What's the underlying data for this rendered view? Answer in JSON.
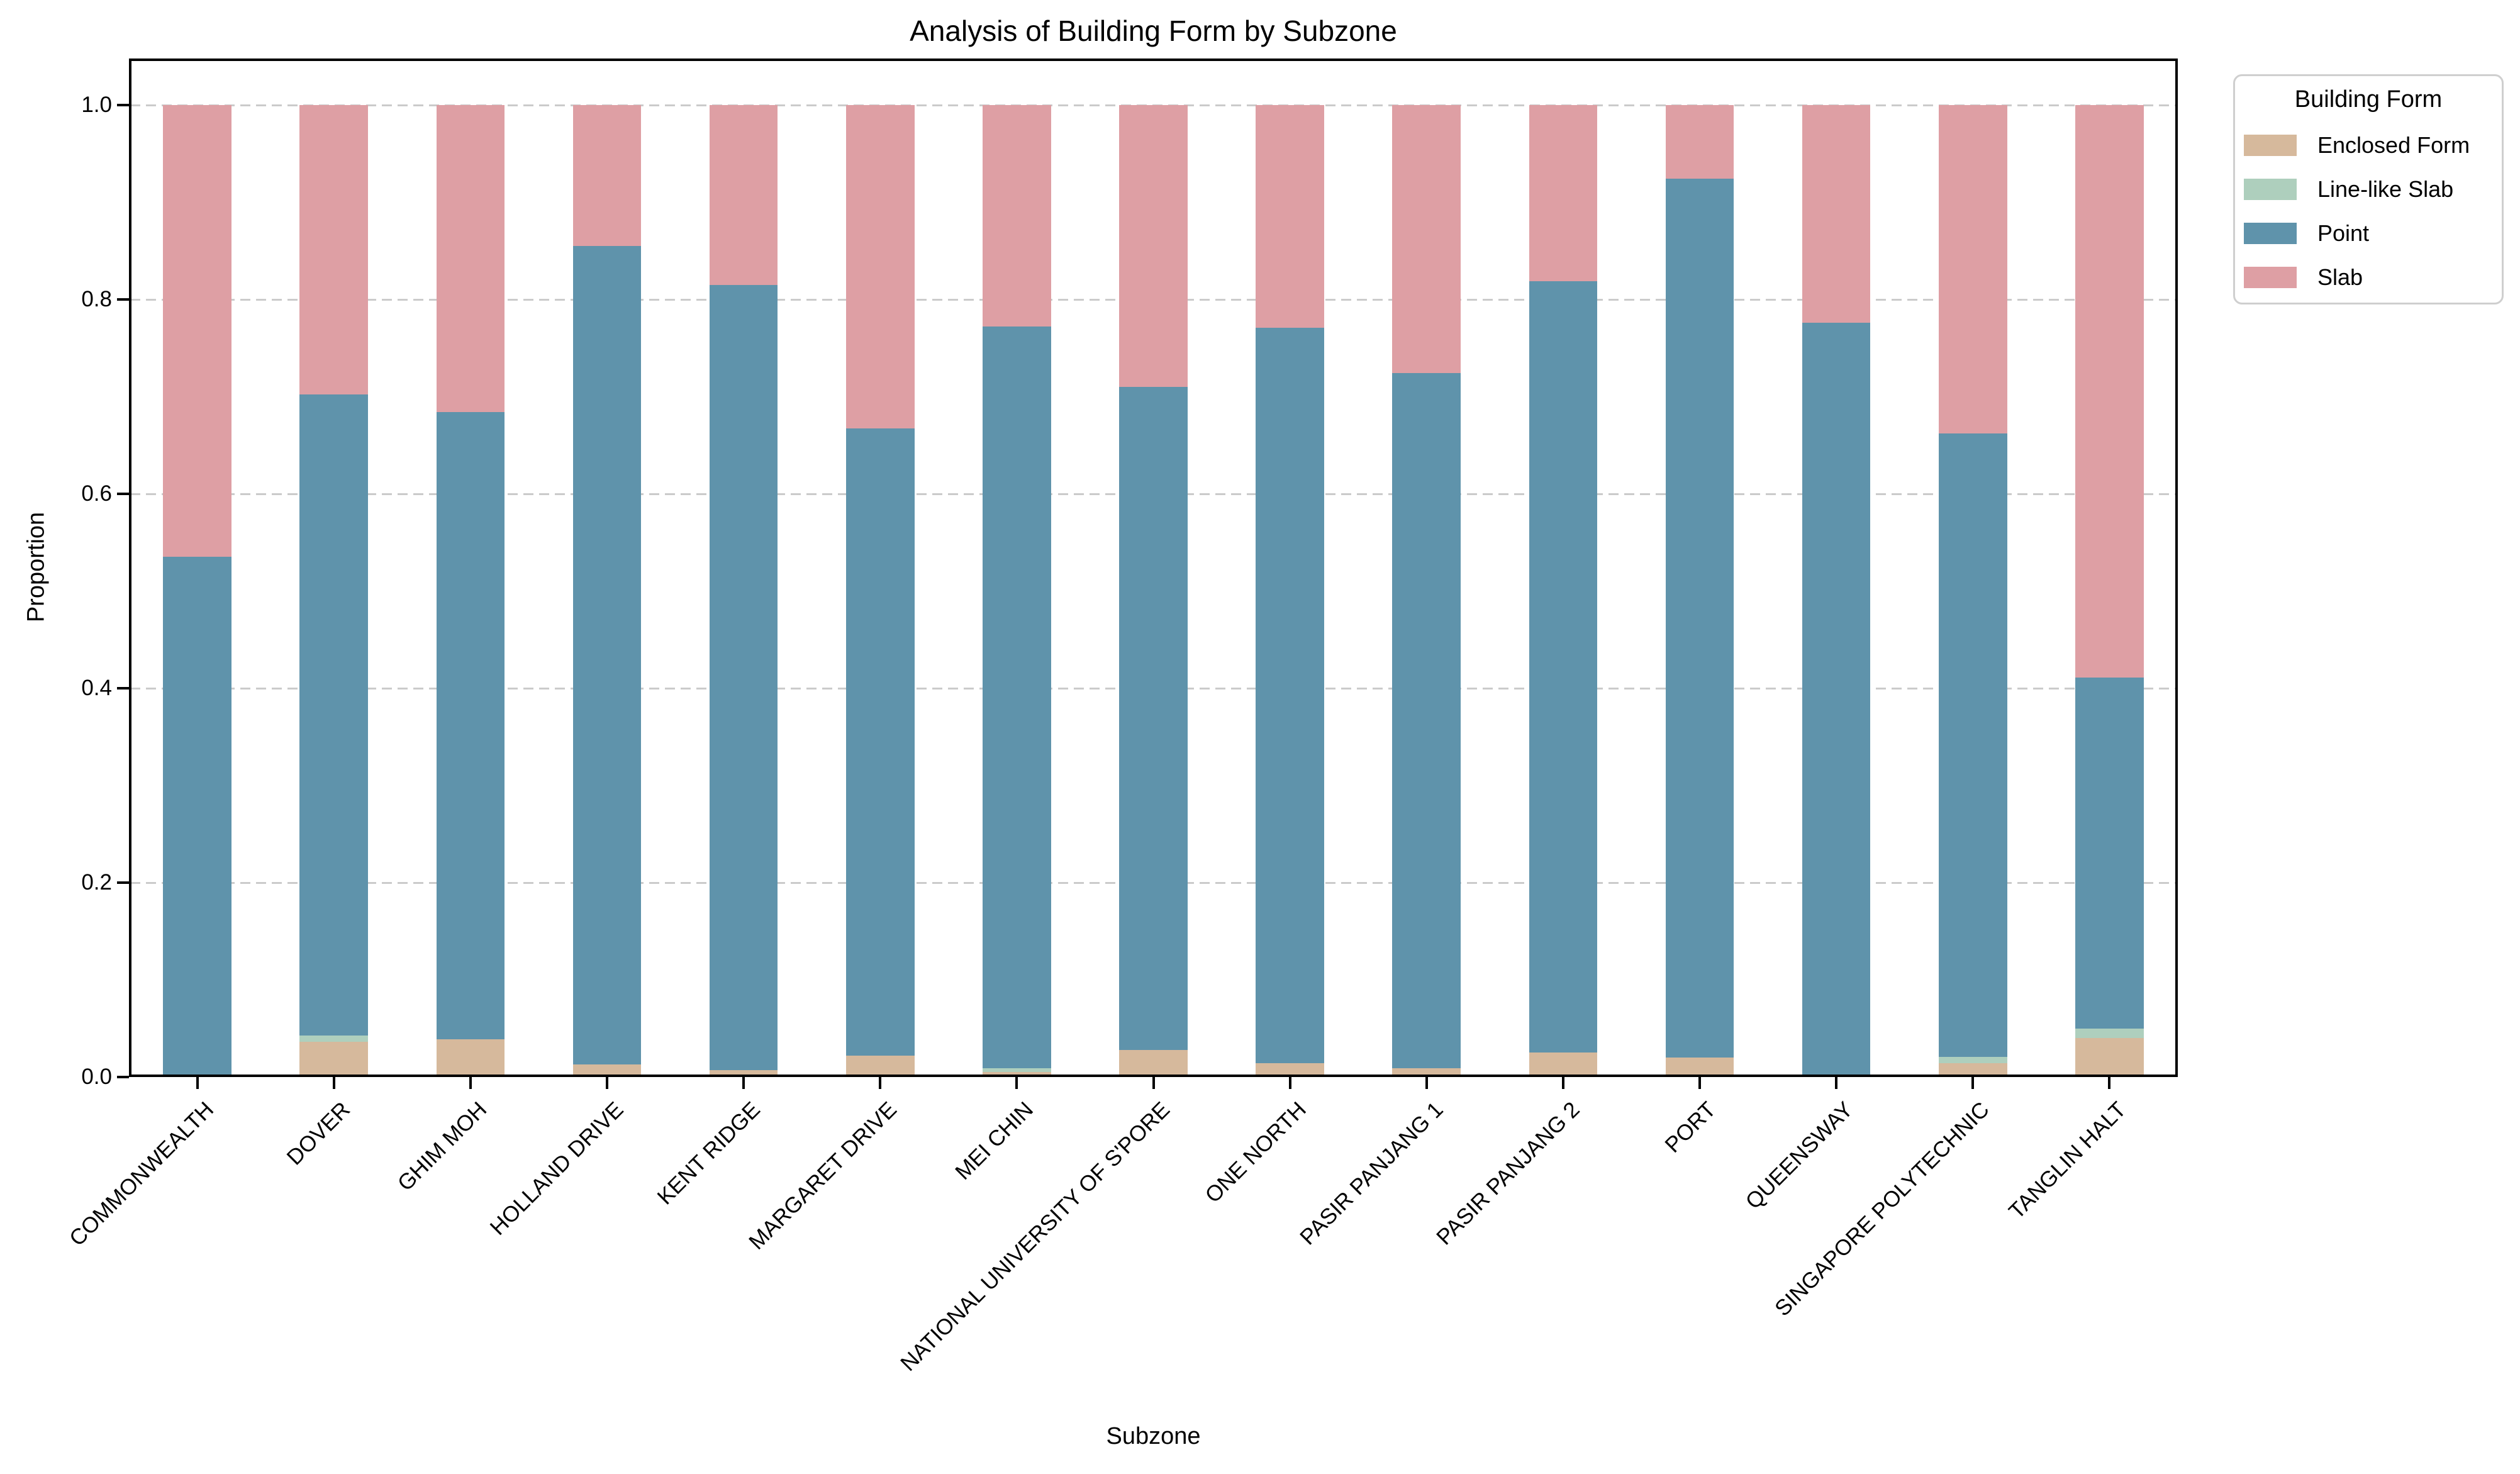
{
  "chart_data": {
    "type": "bar",
    "stacked": true,
    "title": "Analysis of Building Form by Subzone",
    "xlabel": "Subzone",
    "ylabel": "Proportion",
    "ylim": [
      0,
      1.0
    ],
    "ytick_labels": [
      "0.0",
      "0.2",
      "0.4",
      "0.6",
      "0.8",
      "1.0"
    ],
    "grid": "horizontal dashed",
    "legend": {
      "title": "Building Form",
      "position": "outside upper right"
    },
    "categories": [
      "COMMONWEALTH",
      "DOVER",
      "GHIM MOH",
      "HOLLAND DRIVE",
      "KENT RIDGE",
      "MARGARET DRIVE",
      "MEI CHIN",
      "NATIONAL UNIVERSITY OF S'PORE",
      "ONE NORTH",
      "PASIR PANJANG 1",
      "PASIR PANJANG 2",
      "PORT",
      "QUEENSWAY",
      "SINGAPORE POLYTECHNIC",
      "TANGLIN HALT"
    ],
    "series": [
      {
        "name": "Enclosed Form",
        "color": "#d6b99c",
        "values": [
          0.0,
          0.036,
          0.039,
          0.013,
          0.007,
          0.022,
          0.005,
          0.028,
          0.014,
          0.009,
          0.025,
          0.02,
          0.0,
          0.014,
          0.04
        ]
      },
      {
        "name": "Line-like Slab",
        "color": "#aecfbd",
        "values": [
          0.0,
          0.007,
          0.0,
          0.0,
          0.0,
          0.0,
          0.004,
          0.0,
          0.0,
          0.0,
          0.0,
          0.0,
          0.0,
          0.007,
          0.01
        ]
      },
      {
        "name": "Point",
        "color": "#5f93ab",
        "values": [
          0.535,
          0.659,
          0.645,
          0.842,
          0.808,
          0.645,
          0.763,
          0.682,
          0.757,
          0.715,
          0.794,
          0.904,
          0.776,
          0.641,
          0.361
        ]
      },
      {
        "name": "Slab",
        "color": "#de9fa4",
        "values": [
          0.465,
          0.298,
          0.316,
          0.145,
          0.185,
          0.333,
          0.228,
          0.29,
          0.229,
          0.276,
          0.181,
          0.076,
          0.224,
          0.338,
          0.589
        ]
      }
    ]
  }
}
